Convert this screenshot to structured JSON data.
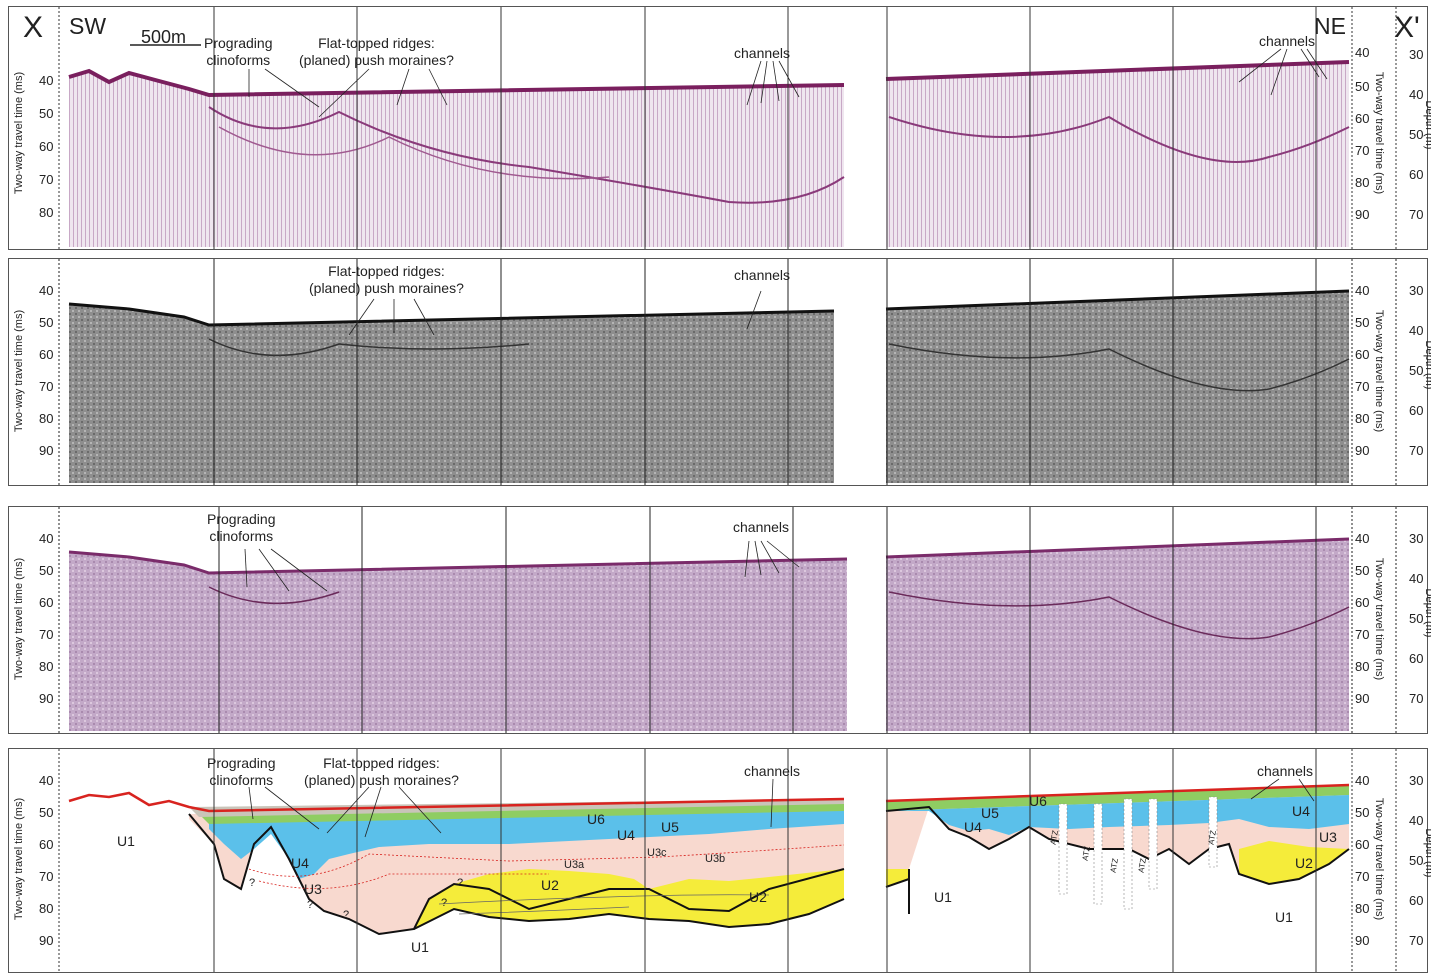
{
  "ends": {
    "left": "X",
    "right": "X'"
  },
  "directions": {
    "sw": "SW",
    "ne": "NE"
  },
  "scale_bar": "500m",
  "axes": {
    "twt_label": "Two-way travel time (ms)",
    "depth_label": "Depth (m)",
    "twt_ticks": [
      "40",
      "50",
      "60",
      "70",
      "80",
      "90"
    ],
    "depth_ticks": [
      "30",
      "40",
      "50",
      "60",
      "70"
    ]
  },
  "annotations": {
    "prograding_clinoforms": "Prograding\nclinoforms",
    "flat_topped_ridges": "Flat-topped ridges:\n(planed) push moraines?",
    "channels": "channels"
  },
  "units": {
    "u1": "U1",
    "u2": "U2",
    "u3": "U3",
    "u3a": "U3a",
    "u3b": "U3b",
    "u3c": "U3c",
    "u4": "U4",
    "u5": "U5",
    "u6": "U6",
    "atz": "ATZ",
    "q": "?"
  },
  "colors": {
    "u1": "#ffffff",
    "u2": "#f5ec3a",
    "u3": "#f8d9cf",
    "u4": "#5bc0ea",
    "u5": "#8fcd62",
    "u6": "#c9c4b9",
    "seabed": "#d8231f",
    "seis_purple": "#8a2a6a",
    "seis_gray": "#555555",
    "seis_lilac": "#b89ab8"
  }
}
